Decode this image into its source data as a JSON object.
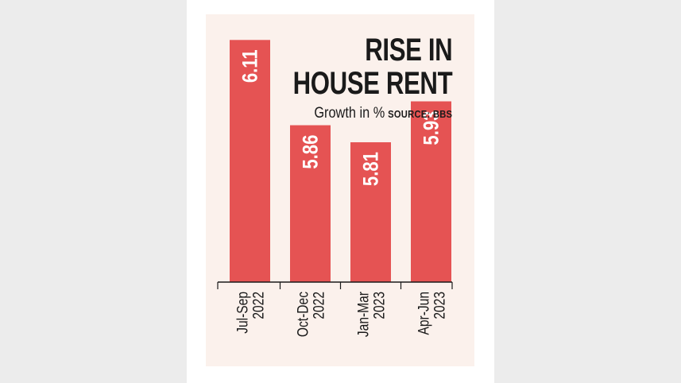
{
  "chart_data": {
    "type": "bar",
    "title_lines": [
      "RISE IN",
      "HOUSE RENT"
    ],
    "subtitle": "Growth in %",
    "source": "SOURCE: BBS",
    "categories": [
      [
        "Jul-Sep",
        "2022"
      ],
      [
        "Oct-Dec",
        "2022"
      ],
      [
        "Jan-Mar",
        "2023"
      ],
      [
        "Apr-Jun",
        "2023"
      ]
    ],
    "values": [
      6.11,
      5.86,
      5.81,
      5.93
    ],
    "value_labels": [
      "6.11",
      "5.86",
      "5.81",
      "5.93"
    ],
    "ylim": [
      5.4,
      6.12
    ],
    "bar_color": "#e55353",
    "grid": false,
    "legend": "none"
  }
}
